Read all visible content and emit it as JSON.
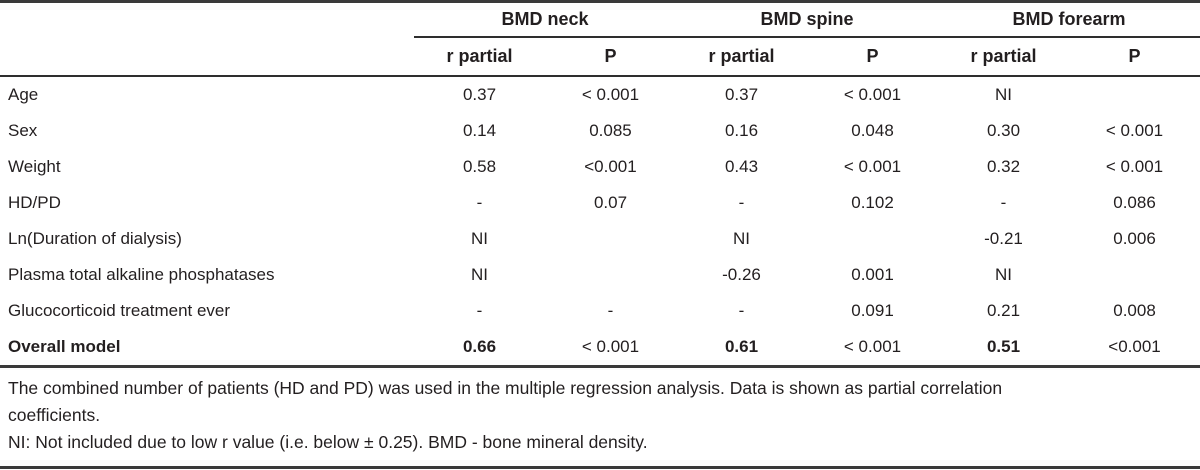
{
  "table": {
    "groups": [
      "BMD neck",
      "BMD spine",
      "BMD forearm"
    ],
    "sub_r": "r partial",
    "sub_p": "P",
    "rows": [
      {
        "label": "Age",
        "cells": [
          "0.37",
          "< 0.001",
          "0.37",
          "< 0.001",
          "NI",
          ""
        ]
      },
      {
        "label": "Sex",
        "cells": [
          "0.14",
          "0.085",
          "0.16",
          "0.048",
          "0.30",
          "< 0.001"
        ]
      },
      {
        "label": "Weight",
        "cells": [
          "0.58",
          "<0.001",
          "0.43",
          "< 0.001",
          "0.32",
          "< 0.001"
        ]
      },
      {
        "label": "HD/PD",
        "cells": [
          "-",
          "0.07",
          "-",
          "0.102",
          "-",
          "0.086"
        ]
      },
      {
        "label": "Ln(Duration of dialysis)",
        "cells": [
          "NI",
          "",
          "NI",
          "",
          "-0.21",
          "0.006"
        ]
      },
      {
        "label": "Plasma total alkaline phosphatases",
        "cells": [
          "NI",
          "",
          "-0.26",
          "0.001",
          "NI",
          ""
        ]
      },
      {
        "label": "Glucocorticoid treatment ever",
        "cells": [
          "-",
          "-",
          "-",
          "0.091",
          "0.21",
          "0.008"
        ]
      },
      {
        "label": "Overall model",
        "cells": [
          "0.66",
          "< 0.001",
          "0.61",
          "< 0.001",
          "0.51",
          "<0.001"
        ]
      }
    ],
    "footnotes": [
      "The combined number of patients (HD and PD) was used in the multiple regression analysis. Data is shown as partial correlation",
      "coefficients.",
      "NI: Not included due to low r value (i.e. below ± 0.25). BMD - bone mineral density."
    ]
  },
  "colors": {
    "text": "#231f20",
    "rule": "#3a3a3a",
    "background": "#ffffff"
  }
}
